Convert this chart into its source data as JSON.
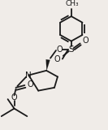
{
  "bg_color": "#f0ece8",
  "line_color": "#1a1a1a",
  "line_width": 1.3,
  "figsize": [
    1.33,
    1.6
  ],
  "dpi": 100,
  "xlim": [
    0,
    133
  ],
  "ylim": [
    0,
    160
  ]
}
